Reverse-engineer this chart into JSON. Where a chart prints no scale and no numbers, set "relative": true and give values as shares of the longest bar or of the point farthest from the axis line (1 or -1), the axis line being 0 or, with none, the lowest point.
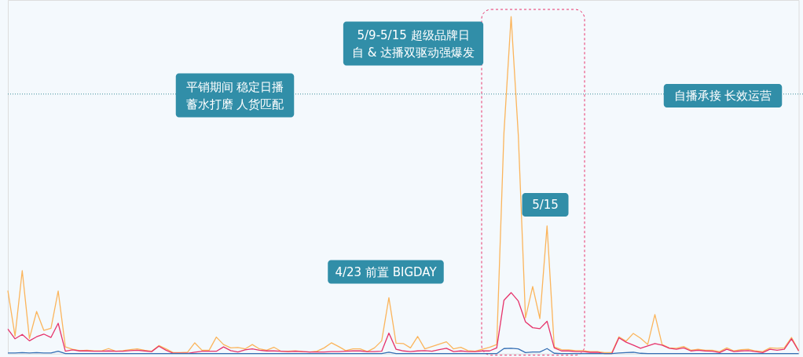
{
  "chart_data": {
    "type": "line",
    "relative": true,
    "tick_labels": false,
    "categories": [
      null,
      null,
      null,
      null,
      null,
      null,
      null,
      null,
      null,
      null,
      null,
      null,
      null,
      null,
      null,
      null,
      null,
      null,
      null,
      null,
      null,
      null,
      null,
      null,
      null,
      null,
      null,
      null,
      null,
      null,
      null,
      null,
      null,
      null,
      null,
      null,
      null,
      null,
      null,
      null,
      null,
      null,
      null,
      null,
      null,
      null,
      null,
      null,
      null,
      null,
      null,
      null,
      null,
      null,
      null,
      null,
      null,
      null,
      null,
      null,
      null,
      null,
      null,
      null,
      null,
      null,
      null,
      null,
      null,
      null,
      null,
      null,
      null,
      null,
      null,
      null,
      null,
      null,
      null,
      null,
      null,
      null,
      null,
      null,
      null,
      null,
      null,
      null,
      null,
      null,
      null,
      null,
      null,
      null,
      null,
      null,
      null,
      null,
      null,
      null,
      null,
      null,
      null,
      null,
      null,
      null,
      null,
      null,
      null,
      null,
      null
    ],
    "series": [
      {
        "color": "#fbb55c",
        "values": [
          0.187,
          0.052,
          0.246,
          0.045,
          0.125,
          0.069,
          0.075,
          0.186,
          0.02,
          0.013,
          0.009,
          0.01,
          0.008,
          0.008,
          0.015,
          0.007,
          0.009,
          0.012,
          0.014,
          0.01,
          0.007,
          0.024,
          0.014,
          0.003,
          0.003,
          0.004,
          0.032,
          0.01,
          0.01,
          0.049,
          0.027,
          0.017,
          0.018,
          0.014,
          0.027,
          0.014,
          0.01,
          0.019,
          0.007,
          0.007,
          0.008,
          0.006,
          0.005,
          0.007,
          0.017,
          0.032,
          0.021,
          0.009,
          0.014,
          0.014,
          0.006,
          0.017,
          0.038,
          0.166,
          0.031,
          0.03,
          0.017,
          0.051,
          0.014,
          0.021,
          0.028,
          0.035,
          0.014,
          0.019,
          0.009,
          0.007,
          0.013,
          0.019,
          0.027,
          0.653,
          1,
          0.649,
          0.106,
          0.199,
          0.104,
          0.379,
          0.02,
          0.012,
          0.011,
          0.009,
          0.009,
          0.006,
          0.006,
          0.003,
          0.003,
          0.05,
          0.037,
          0.06,
          0.046,
          0.027,
          0.116,
          0.027,
          0.017,
          0.016,
          0.021,
          0.01,
          0.013,
          0.01,
          0.01,
          0.006,
          0.017,
          0.008,
          0.012,
          0.013,
          0.008,
          0.006,
          0.017,
          0.016,
          0.017,
          0.048,
          0.009
        ]
      },
      {
        "color": "#e6336b",
        "values": [
          0.073,
          0.044,
          0.057,
          0.038,
          0.05,
          0.058,
          0.048,
          0.09,
          0.007,
          0.011,
          0.008,
          0.008,
          0.007,
          0.007,
          0.008,
          0.007,
          0.007,
          0.009,
          0.01,
          0.008,
          0.006,
          0.022,
          0.01,
          0.001,
          0.001,
          0.001,
          0.004,
          0.007,
          0.007,
          0.007,
          0.02,
          0.009,
          0.005,
          0.011,
          0.014,
          0.01,
          0.008,
          0.008,
          0.007,
          0.006,
          0.007,
          0.006,
          0.005,
          0.005,
          0.005,
          0.006,
          0.006,
          0.007,
          0.008,
          0.008,
          0.006,
          0.006,
          0.007,
          0.061,
          0.013,
          0.008,
          0.006,
          0.008,
          0.009,
          0.007,
          0.012,
          0.016,
          0.006,
          0.008,
          0.006,
          0.006,
          0.008,
          0.008,
          0.017,
          0.158,
          0.181,
          0.156,
          0.094,
          0.077,
          0.074,
          0.096,
          0.017,
          0.008,
          0.008,
          0.006,
          0.006,
          0.004,
          0.004,
          0,
          0,
          0.047,
          0.034,
          0.025,
          0.016,
          0.023,
          0.03,
          0.025,
          0.016,
          0.013,
          0.017,
          0.008,
          0.01,
          0.008,
          0.007,
          0.003,
          0.013,
          0.006,
          0.008,
          0.009,
          0.006,
          0.003,
          0.013,
          0.01,
          0.013,
          0.044,
          0.008
        ]
      },
      {
        "color": "#3670b5",
        "values": [
          0.002,
          0.002,
          0.003,
          0.002,
          0.003,
          0.002,
          0.002,
          0.007,
          0,
          0,
          0,
          0,
          0,
          0,
          0,
          0,
          0,
          0,
          0,
          0,
          0,
          0,
          0,
          0,
          0,
          0,
          0,
          0,
          0,
          0,
          0,
          0,
          0,
          0,
          0,
          0,
          0,
          0,
          0,
          0,
          0,
          0,
          0,
          0,
          0,
          0,
          0,
          0,
          0,
          0,
          0,
          0,
          0,
          0.004,
          0,
          0,
          0,
          0,
          0,
          0,
          0,
          0,
          0,
          0,
          0,
          0,
          0,
          0,
          0,
          0.015,
          0.016,
          0.014,
          0.003,
          0.005,
          0.005,
          0.015,
          0.001,
          0,
          0,
          0,
          0,
          0,
          0,
          0,
          0,
          0.002,
          0.003,
          0.004,
          0.001,
          0,
          0,
          0,
          0,
          0,
          0,
          0,
          0,
          0,
          0,
          0,
          0,
          0,
          0,
          0,
          0,
          0,
          0,
          0,
          0,
          0,
          0
        ]
      }
    ],
    "ref_lines": [
      {
        "axis": "y",
        "value": 0.77,
        "color": "#3a8f9c",
        "line_style": "dotted"
      }
    ],
    "annotations": [
      "平销期间 稳定日播蓄水打磨 人货匹配",
      "4/23 前置 BIGDAY",
      "5/9-5/15 超级品牌日自 & 达播双驱动强爆发",
      "5/15",
      "自播承接 长效运营"
    ]
  }
}
